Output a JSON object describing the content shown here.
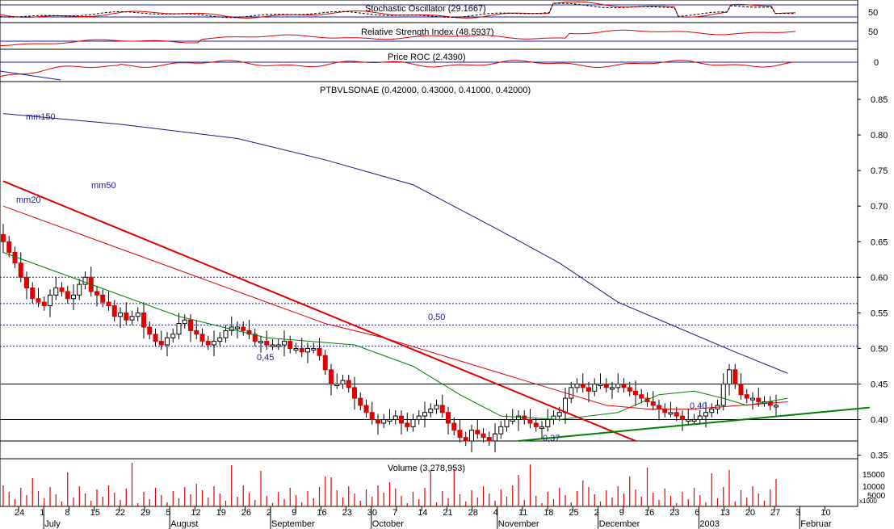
{
  "chart_data": {
    "type": "candlestick",
    "title": "PTBVLSONAE (0.42000, 0.43000, 0.41000, 0.42000)",
    "panels": {
      "stochastic": {
        "title": "Stochastic Oscillator (29.1667)",
        "ticks": [
          "50"
        ]
      },
      "rsi": {
        "title": "Relative Strength Index (48.5937)",
        "ticks": [
          "50"
        ]
      },
      "roc": {
        "title": "Price ROC (2.4390)",
        "ticks": [
          "0"
        ]
      },
      "volume": {
        "title": "Volume (3,278,953)",
        "ticks": [
          "15000",
          "10000",
          "5000"
        ],
        "multiplier": "x1000"
      }
    },
    "price_axis": {
      "ylim": [
        0.345,
        0.875
      ],
      "ticks": [
        "0.85",
        "0.80",
        "0.75",
        "0.70",
        "0.65",
        "0.60",
        "0.55",
        "0.50",
        "0.45",
        "0.40",
        "0.35"
      ]
    },
    "date_ticks": [
      "24",
      "1",
      "8",
      "15",
      "22",
      "29",
      "5",
      "12",
      "19",
      "26",
      "2",
      "9",
      "16",
      "23",
      "30",
      "7",
      "14",
      "21",
      "28",
      "4",
      "11",
      "18",
      "25",
      "2",
      "9",
      "16",
      "23",
      "6",
      "13",
      "20",
      "27",
      "3",
      "10"
    ],
    "month_labels": [
      "July",
      "August",
      "September",
      "October",
      "November",
      "December",
      "2003",
      "Februar"
    ],
    "annotations": {
      "mm150": "mm150",
      "mm50": "mm50",
      "mm20": "mm20",
      "level_050": "0,50",
      "level_045": "0,45",
      "level_040": "0,40",
      "level_037": "0,37"
    },
    "levels": {
      "solid": [
        0.45,
        0.4,
        0.37
      ],
      "dotted": [
        0.6,
        0.563,
        0.533,
        0.503
      ]
    },
    "close": [
      0.65,
      0.635,
      0.62,
      0.6,
      0.585,
      0.57,
      0.565,
      0.56,
      0.575,
      0.585,
      0.58,
      0.57,
      0.575,
      0.59,
      0.6,
      0.58,
      0.575,
      0.565,
      0.56,
      0.545,
      0.55,
      0.54,
      0.545,
      0.55,
      0.53,
      0.52,
      0.51,
      0.505,
      0.515,
      0.52,
      0.535,
      0.54,
      0.525,
      0.52,
      0.51,
      0.505,
      0.51,
      0.515,
      0.525,
      0.53,
      0.53,
      0.525,
      0.52,
      0.51,
      0.51,
      0.505,
      0.505,
      0.505,
      0.51,
      0.5,
      0.5,
      0.495,
      0.5,
      0.5,
      0.49,
      0.47,
      0.45,
      0.45,
      0.455,
      0.445,
      0.43,
      0.42,
      0.41,
      0.4,
      0.395,
      0.4,
      0.4,
      0.405,
      0.395,
      0.39,
      0.4,
      0.405,
      0.41,
      0.415,
      0.42,
      0.41,
      0.395,
      0.385,
      0.375,
      0.37,
      0.385,
      0.38,
      0.375,
      0.37,
      0.38,
      0.39,
      0.4,
      0.4,
      0.405,
      0.4,
      0.395,
      0.39,
      0.39,
      0.4,
      0.405,
      0.41,
      0.43,
      0.445,
      0.45,
      0.445,
      0.44,
      0.45,
      0.45,
      0.445,
      0.445,
      0.45,
      0.445,
      0.44,
      0.435,
      0.43,
      0.425,
      0.42,
      0.415,
      0.41,
      0.41,
      0.405,
      0.4,
      0.4,
      0.4,
      0.405,
      0.41,
      0.415,
      0.42,
      0.45,
      0.47,
      0.45,
      0.435,
      0.43,
      0.43,
      0.425,
      0.425,
      0.42,
      0.42
    ],
    "ma": {
      "mm20": [
        [
          0,
          0.635
        ],
        [
          15,
          0.59
        ],
        [
          30,
          0.545
        ],
        [
          45,
          0.515
        ],
        [
          60,
          0.505
        ],
        [
          70,
          0.475
        ],
        [
          78,
          0.435
        ],
        [
          85,
          0.405
        ],
        [
          95,
          0.4
        ],
        [
          105,
          0.41
        ],
        [
          112,
          0.435
        ],
        [
          118,
          0.44
        ],
        [
          123,
          0.43
        ],
        [
          127,
          0.42
        ],
        [
          134,
          0.43
        ]
      ],
      "mm50": [
        [
          0,
          0.7
        ],
        [
          15,
          0.655
        ],
        [
          30,
          0.61
        ],
        [
          45,
          0.565
        ],
        [
          55,
          0.535
        ],
        [
          65,
          0.515
        ],
        [
          75,
          0.49
        ],
        [
          85,
          0.465
        ],
        [
          95,
          0.44
        ],
        [
          103,
          0.42
        ],
        [
          110,
          0.415
        ],
        [
          118,
          0.415
        ],
        [
          126,
          0.42
        ],
        [
          134,
          0.425
        ]
      ],
      "mm150": [
        [
          0,
          0.83
        ],
        [
          20,
          0.815
        ],
        [
          40,
          0.795
        ],
        [
          55,
          0.765
        ],
        [
          70,
          0.73
        ],
        [
          85,
          0.665
        ],
        [
          95,
          0.62
        ],
        [
          105,
          0.565
        ],
        [
          115,
          0.53
        ],
        [
          125,
          0.495
        ],
        [
          134,
          0.465
        ]
      ]
    },
    "trendlines": {
      "down": [
        [
          0,
          0.735
        ],
        [
          108,
          0.37
        ]
      ],
      "up": [
        [
          88,
          0.37
        ],
        [
          148,
          0.417
        ]
      ]
    }
  }
}
